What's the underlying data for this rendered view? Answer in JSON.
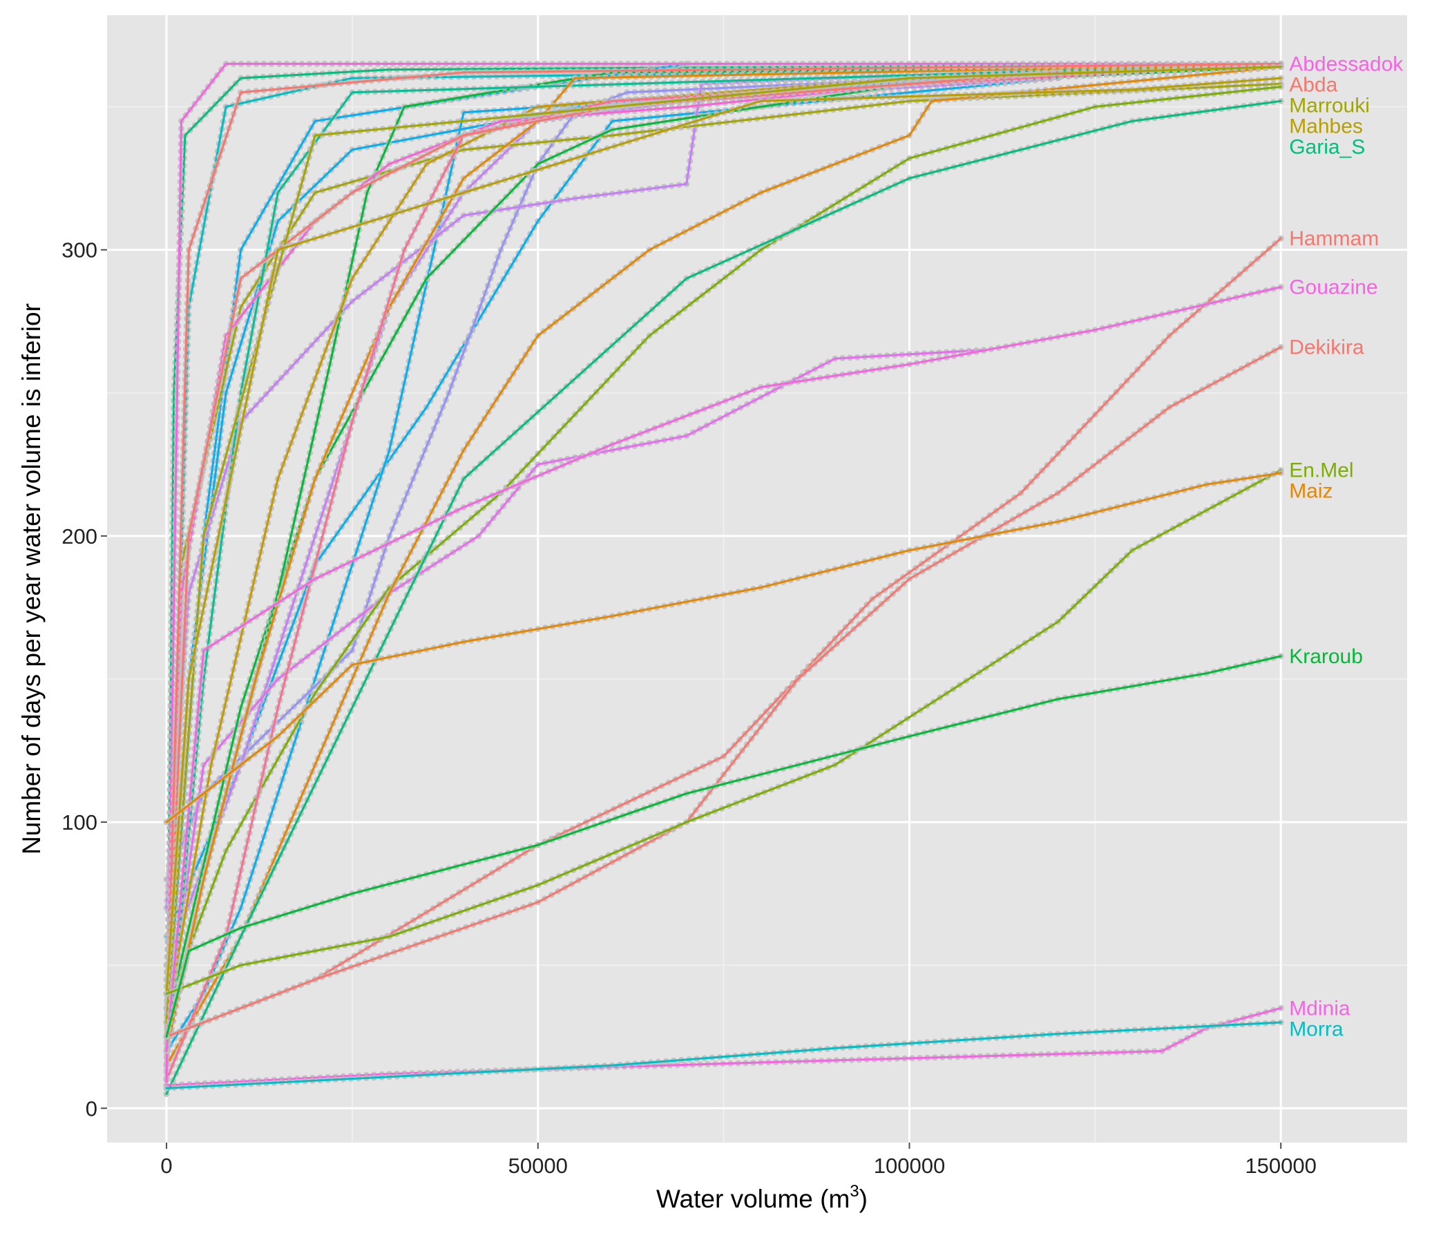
{
  "chart_data": {
    "type": "line",
    "title": "",
    "xlabel": "Water volume (m",
    "xlabel_superscript": "3",
    "xlabel_suffix": ")",
    "ylabel": "Number of days per year water volume is inferior",
    "xlim": [
      -8000,
      167000
    ],
    "ylim": [
      -12,
      382
    ],
    "x_ticks": [
      0,
      50000,
      100000,
      150000
    ],
    "x_tick_labels": [
      "0",
      "50000",
      "100000",
      "150000"
    ],
    "y_ticks": [
      0,
      100,
      200,
      300
    ],
    "y_tick_labels": [
      "0",
      "100",
      "200",
      "300"
    ],
    "grid": true,
    "background": "#e5e5e5",
    "point_color": "#bdbdbd",
    "legend": "none (series labelled at line ends)",
    "labeled_series": [
      {
        "name": "Abdessadok",
        "color": "#f564e3",
        "points": [
          [
            0,
            8
          ],
          [
            2000,
            345
          ],
          [
            8000,
            365
          ],
          [
            150000,
            365
          ]
        ]
      },
      {
        "name": "Abda",
        "color": "#f8766d",
        "points": [
          [
            0,
            20
          ],
          [
            3000,
            300
          ],
          [
            10000,
            355
          ],
          [
            40000,
            362
          ],
          [
            150000,
            365
          ]
        ]
      },
      {
        "name": "Marrouki",
        "color": "#a3a500",
        "points": [
          [
            0,
            30
          ],
          [
            5000,
            200
          ],
          [
            20000,
            340
          ],
          [
            100000,
            360
          ],
          [
            150000,
            364
          ]
        ]
      },
      {
        "name": "Mahbes",
        "color": "#b79f00",
        "points": [
          [
            0,
            40
          ],
          [
            3000,
            150
          ],
          [
            15000,
            300
          ],
          [
            80000,
            352
          ],
          [
            130000,
            356
          ],
          [
            150000,
            360
          ]
        ]
      },
      {
        "name": "Garia_S",
        "color": "#00bf7d",
        "points": [
          [
            0,
            5
          ],
          [
            10000,
            60
          ],
          [
            40000,
            220
          ],
          [
            70000,
            290
          ],
          [
            100000,
            325
          ],
          [
            130000,
            345
          ],
          [
            150000,
            352
          ]
        ]
      },
      {
        "name": "Hammam",
        "color": "#f8766d",
        "points": [
          [
            0,
            25
          ],
          [
            20000,
            45
          ],
          [
            50000,
            92
          ],
          [
            75000,
            123
          ],
          [
            95000,
            178
          ],
          [
            115000,
            215
          ],
          [
            135000,
            270
          ],
          [
            150000,
            304
          ]
        ]
      },
      {
        "name": "Gouazine",
        "color": "#f564e3",
        "points": [
          [
            0,
            20
          ],
          [
            5000,
            160
          ],
          [
            20000,
            185
          ],
          [
            40000,
            210
          ],
          [
            60000,
            232
          ],
          [
            80000,
            252
          ],
          [
            100000,
            260
          ],
          [
            125000,
            272
          ],
          [
            150000,
            287
          ]
        ]
      },
      {
        "name": "Dekikira",
        "color": "#f8766d",
        "points": [
          [
            0,
            25
          ],
          [
            20000,
            45
          ],
          [
            50000,
            72
          ],
          [
            70000,
            100
          ],
          [
            85000,
            150
          ],
          [
            100000,
            185
          ],
          [
            120000,
            215
          ],
          [
            135000,
            245
          ],
          [
            150000,
            266
          ]
        ]
      },
      {
        "name": "En.Mel",
        "color": "#7cae00",
        "points": [
          [
            0,
            40
          ],
          [
            10000,
            50
          ],
          [
            30000,
            60
          ],
          [
            50000,
            78
          ],
          [
            70000,
            100
          ],
          [
            90000,
            120
          ],
          [
            105000,
            145
          ],
          [
            120000,
            170
          ],
          [
            130000,
            195
          ],
          [
            150000,
            223
          ]
        ]
      },
      {
        "name": "Maiz",
        "color": "#e58700",
        "points": [
          [
            0,
            100
          ],
          [
            15000,
            130
          ],
          [
            25000,
            155
          ],
          [
            40000,
            163
          ],
          [
            60000,
            172
          ],
          [
            80000,
            182
          ],
          [
            100000,
            195
          ],
          [
            120000,
            205
          ],
          [
            140000,
            218
          ],
          [
            150000,
            222
          ]
        ]
      },
      {
        "name": "Kraroub",
        "color": "#00ba38",
        "points": [
          [
            0,
            25
          ],
          [
            3000,
            55
          ],
          [
            10000,
            63
          ],
          [
            25000,
            75
          ],
          [
            50000,
            92
          ],
          [
            70000,
            110
          ],
          [
            100000,
            130
          ],
          [
            120000,
            143
          ],
          [
            140000,
            152
          ],
          [
            150000,
            158
          ]
        ]
      },
      {
        "name": "Mdinia",
        "color": "#f564e3",
        "points": [
          [
            0,
            8
          ],
          [
            30000,
            12
          ],
          [
            80000,
            16
          ],
          [
            134000,
            20
          ],
          [
            140000,
            28
          ],
          [
            150000,
            35
          ]
        ]
      },
      {
        "name": "Morra",
        "color": "#00bfc4",
        "points": [
          [
            0,
            7
          ],
          [
            30000,
            11
          ],
          [
            60000,
            15
          ],
          [
            90000,
            21
          ],
          [
            120000,
            26
          ],
          [
            150000,
            30
          ]
        ]
      }
    ],
    "unlabeled_series": [
      {
        "color": "#00bf7d",
        "points": [
          [
            0,
            10
          ],
          [
            1000,
            250
          ],
          [
            2500,
            340
          ],
          [
            10000,
            360
          ],
          [
            30000,
            363
          ],
          [
            150000,
            365
          ]
        ]
      },
      {
        "color": "#00bfc4",
        "points": [
          [
            0,
            15
          ],
          [
            3000,
            280
          ],
          [
            8000,
            350
          ],
          [
            25000,
            360
          ],
          [
            150000,
            364
          ]
        ]
      },
      {
        "color": "#00b0f6",
        "points": [
          [
            0,
            25
          ],
          [
            5000,
            200
          ],
          [
            10000,
            300
          ],
          [
            20000,
            345
          ],
          [
            70000,
            365
          ]
        ]
      },
      {
        "color": "#00b0f6",
        "points": [
          [
            0,
            60
          ],
          [
            10000,
            120
          ],
          [
            20000,
            190
          ],
          [
            35000,
            245
          ],
          [
            50000,
            310
          ],
          [
            60000,
            345
          ],
          [
            120000,
            360
          ]
        ]
      },
      {
        "color": "#00b0f6",
        "points": [
          [
            0,
            20
          ],
          [
            5000,
            40
          ],
          [
            10000,
            70
          ],
          [
            20000,
            150
          ],
          [
            30000,
            230
          ],
          [
            36000,
            300
          ],
          [
            40000,
            348
          ],
          [
            120000,
            362
          ]
        ]
      },
      {
        "color": "#00b0f6",
        "points": [
          [
            0,
            35
          ],
          [
            3000,
            150
          ],
          [
            8000,
            250
          ],
          [
            15000,
            310
          ],
          [
            25000,
            335
          ],
          [
            60000,
            352
          ],
          [
            120000,
            360
          ]
        ]
      },
      {
        "color": "#9590ff",
        "points": [
          [
            0,
            80
          ],
          [
            5000,
            110
          ],
          [
            15000,
            135
          ],
          [
            25000,
            160
          ],
          [
            30000,
            200
          ],
          [
            38000,
            250
          ],
          [
            45000,
            300
          ],
          [
            50000,
            330
          ],
          [
            55000,
            348
          ],
          [
            62000,
            355
          ],
          [
            120000,
            362
          ]
        ]
      },
      {
        "color": "#c77cff",
        "points": [
          [
            0,
            50
          ],
          [
            10000,
            120
          ],
          [
            20000,
            200
          ],
          [
            30000,
            280
          ],
          [
            40000,
            320
          ],
          [
            50000,
            345
          ],
          [
            70000,
            352
          ],
          [
            120000,
            360
          ]
        ]
      },
      {
        "color": "#c77cff",
        "points": [
          [
            0,
            70
          ],
          [
            3000,
            180
          ],
          [
            10000,
            240
          ],
          [
            25000,
            282
          ],
          [
            40000,
            312
          ],
          [
            55000,
            318
          ],
          [
            70000,
            323
          ],
          [
            72000,
            358
          ],
          [
            110000,
            362
          ]
        ]
      },
      {
        "color": "#e76bf3",
        "points": [
          [
            0,
            30
          ],
          [
            5000,
            120
          ],
          [
            15000,
            150
          ],
          [
            30000,
            180
          ],
          [
            42000,
            200
          ],
          [
            50000,
            225
          ],
          [
            70000,
            235
          ],
          [
            90000,
            262
          ],
          [
            110000,
            265
          ]
        ]
      },
      {
        "color": "#a3a500",
        "points": [
          [
            0,
            45
          ],
          [
            2000,
            190
          ],
          [
            10000,
            280
          ],
          [
            20000,
            320
          ],
          [
            40000,
            335
          ],
          [
            60000,
            340
          ],
          [
            100000,
            352
          ],
          [
            150000,
            358
          ]
        ]
      },
      {
        "color": "#7cae00",
        "points": [
          [
            0,
            35
          ],
          [
            8000,
            90
          ],
          [
            20000,
            145
          ],
          [
            30000,
            182
          ],
          [
            45000,
            215
          ],
          [
            65000,
            270
          ],
          [
            80000,
            300
          ],
          [
            100000,
            332
          ],
          [
            125000,
            350
          ],
          [
            150000,
            357
          ]
        ]
      },
      {
        "color": "#00ba38",
        "points": [
          [
            0,
            30
          ],
          [
            10000,
            140
          ],
          [
            20000,
            220
          ],
          [
            35000,
            290
          ],
          [
            50000,
            330
          ],
          [
            60000,
            342
          ],
          [
            100000,
            358
          ],
          [
            150000,
            364
          ]
        ]
      },
      {
        "color": "#00ba38",
        "points": [
          [
            0,
            20
          ],
          [
            5000,
            80
          ],
          [
            15000,
            180
          ],
          [
            22000,
            260
          ],
          [
            27000,
            320
          ],
          [
            32000,
            350
          ],
          [
            60000,
            362
          ],
          [
            150000,
            364
          ]
        ]
      },
      {
        "color": "#00c094",
        "points": [
          [
            0,
            15
          ],
          [
            5000,
            150
          ],
          [
            10000,
            250
          ],
          [
            15000,
            320
          ],
          [
            25000,
            355
          ],
          [
            150000,
            365
          ]
        ]
      },
      {
        "color": "#e58700",
        "points": [
          [
            0,
            15
          ],
          [
            10000,
            60
          ],
          [
            20000,
            120
          ],
          [
            30000,
            180
          ],
          [
            40000,
            230
          ],
          [
            50000,
            270
          ],
          [
            65000,
            300
          ],
          [
            80000,
            320
          ],
          [
            95000,
            335
          ],
          [
            100000,
            340
          ],
          [
            103000,
            352
          ],
          [
            150000,
            364
          ]
        ]
      },
      {
        "color": "#e58700",
        "points": [
          [
            0,
            20
          ],
          [
            5000,
            80
          ],
          [
            12000,
            150
          ],
          [
            20000,
            220
          ],
          [
            30000,
            280
          ],
          [
            40000,
            325
          ],
          [
            50000,
            345
          ],
          [
            55000,
            360
          ],
          [
            150000,
            365
          ]
        ]
      },
      {
        "color": "#c49a00",
        "points": [
          [
            0,
            30
          ],
          [
            6000,
            120
          ],
          [
            15000,
            220
          ],
          [
            25000,
            290
          ],
          [
            35000,
            330
          ],
          [
            50000,
            350
          ],
          [
            100000,
            360
          ],
          [
            150000,
            365
          ]
        ]
      },
      {
        "color": "#fb61d7",
        "points": [
          [
            0,
            40
          ],
          [
            2000,
            180
          ],
          [
            8000,
            270
          ],
          [
            20000,
            310
          ],
          [
            30000,
            330
          ],
          [
            45000,
            345
          ],
          [
            70000,
            350
          ],
          [
            100000,
            358
          ],
          [
            150000,
            365
          ]
        ]
      },
      {
        "color": "#ff6c91",
        "points": [
          [
            0,
            10
          ],
          [
            8000,
            60
          ],
          [
            15000,
            140
          ],
          [
            25000,
            240
          ],
          [
            32000,
            300
          ],
          [
            40000,
            340
          ],
          [
            60000,
            352
          ],
          [
            150000,
            365
          ]
        ]
      },
      {
        "color": "#f8766d",
        "points": [
          [
            0,
            30
          ],
          [
            3000,
            200
          ],
          [
            10000,
            290
          ],
          [
            25000,
            320
          ],
          [
            40000,
            340
          ],
          [
            60000,
            350
          ],
          [
            120000,
            362
          ]
        ]
      }
    ]
  }
}
